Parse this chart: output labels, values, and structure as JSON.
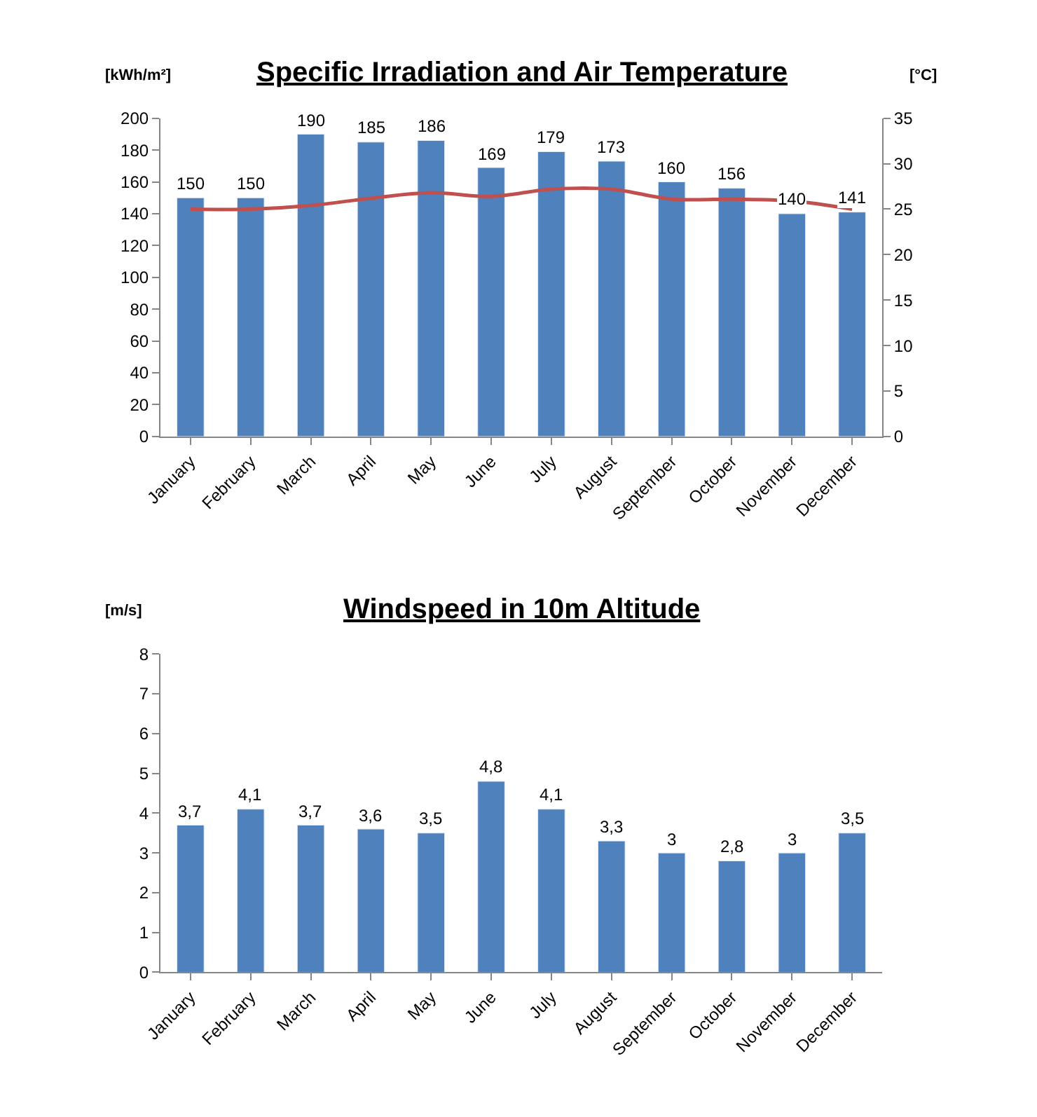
{
  "chart_data": [
    {
      "type": "bar",
      "title": "Specific Irradiation and Air Temperature",
      "ylabel": "[kWh/m²]",
      "y2label": "[°C]",
      "categories": [
        "January",
        "February",
        "March",
        "April",
        "May",
        "June",
        "July",
        "August",
        "September",
        "October",
        "November",
        "December"
      ],
      "series": [
        {
          "color": "#4f81bd",
          "values": [
            150,
            150,
            190,
            185,
            186,
            169,
            179,
            173,
            160,
            156,
            140,
            141
          ],
          "value_labels": [
            "150",
            "150",
            "190",
            "185",
            "186",
            "169",
            "179",
            "173",
            "160",
            "156",
            "140",
            "141"
          ]
        },
        {
          "type": "line",
          "axis": "y2",
          "color": "#c0504d",
          "values": [
            25,
            25,
            25.4,
            26.2,
            26.8,
            26.4,
            27.2,
            27.2,
            26.1,
            26.1,
            25.9,
            25
          ]
        }
      ],
      "ylim": [
        0,
        200
      ],
      "yticks": [
        0,
        20,
        40,
        60,
        80,
        100,
        120,
        140,
        160,
        180,
        200
      ],
      "y2lim": [
        0,
        35
      ],
      "y2ticks": [
        0,
        5,
        10,
        15,
        20,
        25,
        30,
        35
      ],
      "grid": false
    },
    {
      "type": "bar",
      "title": "Windspeed in 10m Altitude",
      "ylabel": "[m/s]",
      "categories": [
        "January",
        "February",
        "March",
        "April",
        "May",
        "June",
        "July",
        "August",
        "September",
        "October",
        "November",
        "December"
      ],
      "series": [
        {
          "color": "#4f81bd",
          "values": [
            3.7,
            4.1,
            3.7,
            3.6,
            3.5,
            4.8,
            4.1,
            3.3,
            3,
            2.8,
            3,
            3.5
          ],
          "value_labels": [
            "3,7",
            "4,1",
            "3,7",
            "3,6",
            "3,5",
            "4,8",
            "4,1",
            "3,3",
            "3",
            "2,8",
            "3",
            "3,5"
          ]
        }
      ],
      "ylim": [
        0,
        8
      ],
      "yticks": [
        0,
        1,
        2,
        3,
        4,
        5,
        6,
        7,
        8
      ],
      "grid": false
    }
  ]
}
